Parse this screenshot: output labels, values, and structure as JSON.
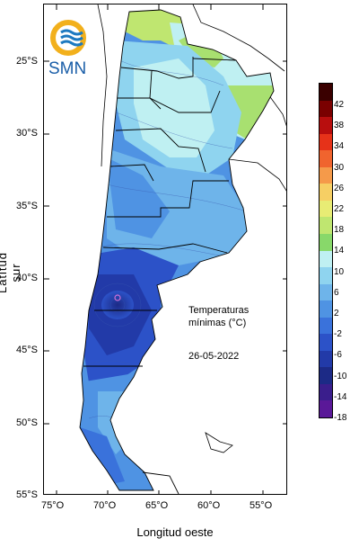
{
  "map": {
    "title_line1": "Temperaturas",
    "title_line2": "mínimas (°C)",
    "date": "26-05-2022",
    "y_axis_title": "Latitud sur",
    "x_axis_title": "Longitud oeste",
    "lat_labels": [
      "25°S",
      "30°S",
      "35°S",
      "40°S",
      "45°S",
      "50°S",
      "55°S"
    ],
    "lon_labels": [
      "75°O",
      "70°O",
      "65°O",
      "60°O",
      "55°O"
    ],
    "logo_text": "SMN",
    "legend_values": [
      "42",
      "38",
      "34",
      "30",
      "26",
      "22",
      "18",
      "14",
      "10",
      "6",
      "2",
      "-2",
      "-6",
      "-10",
      "-14",
      "-18"
    ],
    "legend_colors": [
      "#3a0000",
      "#7a0000",
      "#b80e0e",
      "#e63219",
      "#f0642e",
      "#f59a4a",
      "#f6cf64",
      "#e8ec74",
      "#bfe670",
      "#88d86a",
      "#bff0f2",
      "#8fd4ef",
      "#6eb4ea",
      "#4f93e3",
      "#3a72db",
      "#2c52c8",
      "#223aa8",
      "#1c2a86",
      "#3a1e8c",
      "#5a1898"
    ],
    "accent_colors": {
      "cold": "#1c2a86",
      "mild": "#4f93e3",
      "warm": "#a8e070"
    }
  }
}
